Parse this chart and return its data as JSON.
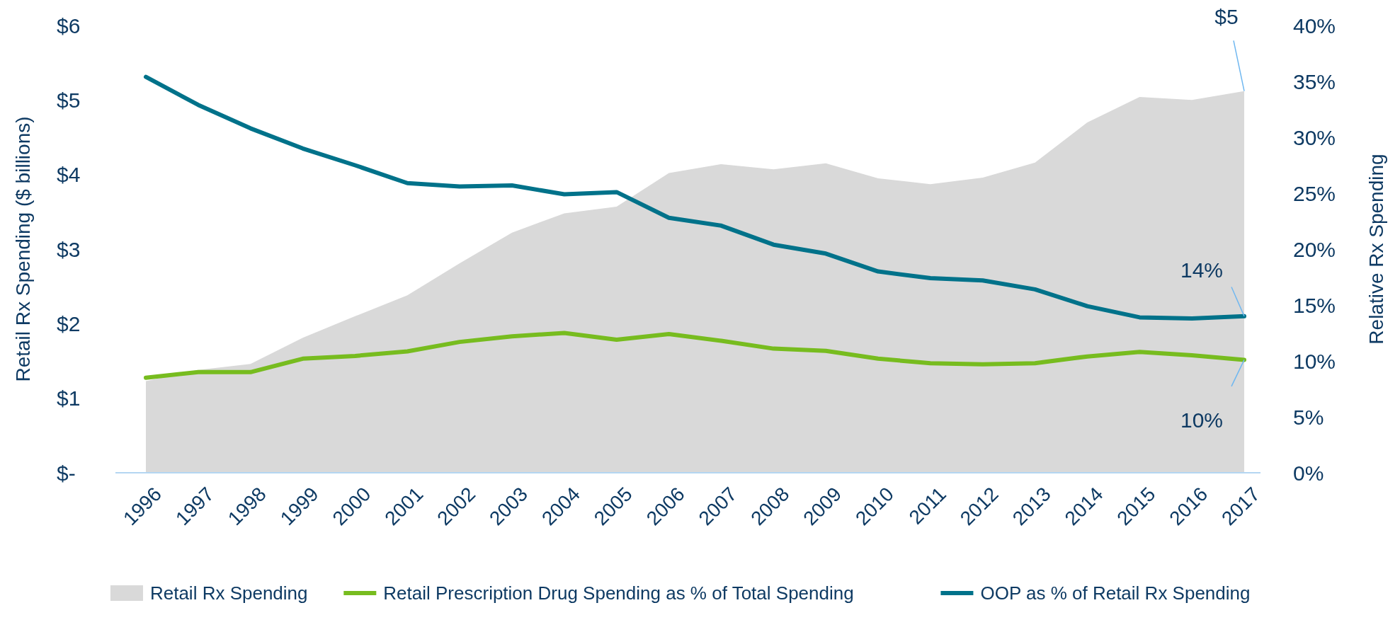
{
  "chart_data": {
    "type": "line",
    "categories": [
      "1996",
      "1997",
      "1998",
      "1999",
      "2000",
      "2001",
      "2002",
      "2003",
      "2004",
      "2005",
      "2006",
      "2007",
      "2008",
      "2009",
      "2010",
      "2011",
      "2012",
      "2013",
      "2014",
      "2015",
      "2016",
      "2017"
    ],
    "ylabel": "Retail Rx Spending ($ billions)",
    "y2label": "Relative Rx Spending",
    "ylim": [
      0,
      6
    ],
    "yticks": [
      {
        "value": 0,
        "label": "$-"
      },
      {
        "value": 1,
        "label": "$1"
      },
      {
        "value": 2,
        "label": "$2"
      },
      {
        "value": 3,
        "label": "$3"
      },
      {
        "value": 4,
        "label": "$4"
      },
      {
        "value": 5,
        "label": "$5"
      },
      {
        "value": 6,
        "label": "$6"
      }
    ],
    "y2lim": [
      0,
      40
    ],
    "y2ticks": [
      {
        "value": 0,
        "label": "0%"
      },
      {
        "value": 5,
        "label": "5%"
      },
      {
        "value": 10,
        "label": "10%"
      },
      {
        "value": 15,
        "label": "15%"
      },
      {
        "value": 20,
        "label": "20%"
      },
      {
        "value": 25,
        "label": "25%"
      },
      {
        "value": 30,
        "label": "30%"
      },
      {
        "value": 35,
        "label": "35%"
      },
      {
        "value": 40,
        "label": "40%"
      }
    ],
    "legend": "bottom",
    "grid": false,
    "series": [
      {
        "name": "Retail Rx Spending",
        "type": "area",
        "axis": "y",
        "color": "#d9d9d9",
        "values": [
          1.23,
          1.38,
          1.46,
          1.81,
          2.1,
          2.38,
          2.81,
          3.22,
          3.48,
          3.57,
          4.02,
          4.14,
          4.07,
          4.15,
          3.95,
          3.87,
          3.96,
          4.16,
          4.7,
          5.04,
          5.0,
          5.12
        ],
        "value_labels": [
          null,
          null,
          null,
          null,
          null,
          null,
          null,
          null,
          null,
          null,
          null,
          null,
          null,
          null,
          null,
          null,
          null,
          null,
          null,
          null,
          null,
          "$5"
        ]
      },
      {
        "name": "Retail Prescription Drug Spending as % of Total Spending",
        "axis": "y2",
        "color": "#77bc1f",
        "values": [
          8.5,
          9.0,
          9.0,
          10.2,
          10.45,
          10.85,
          11.7,
          12.2,
          12.5,
          11.9,
          12.4,
          11.8,
          11.1,
          10.9,
          10.2,
          9.8,
          9.7,
          9.8,
          10.4,
          10.8,
          10.5,
          10.1
        ],
        "value_labels": [
          null,
          null,
          null,
          null,
          null,
          null,
          null,
          null,
          null,
          null,
          null,
          null,
          null,
          null,
          null,
          null,
          null,
          null,
          null,
          null,
          null,
          "10%"
        ]
      },
      {
        "name": "OOP as % of Retail Rx Spending",
        "axis": "y2",
        "color": "#00728a",
        "values": [
          35.4,
          32.9,
          30.8,
          29.0,
          27.5,
          25.9,
          25.6,
          25.7,
          24.9,
          25.1,
          22.8,
          22.1,
          20.4,
          19.6,
          18.0,
          17.4,
          17.2,
          16.4,
          14.9,
          13.9,
          13.8,
          14.0
        ],
        "value_labels": [
          null,
          null,
          null,
          null,
          null,
          null,
          null,
          null,
          null,
          null,
          null,
          null,
          null,
          null,
          null,
          null,
          null,
          null,
          null,
          null,
          null,
          "14%"
        ]
      }
    ]
  }
}
